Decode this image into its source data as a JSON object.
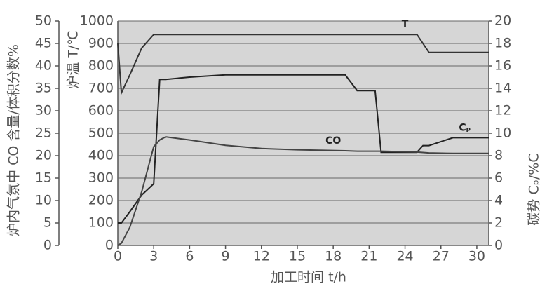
{
  "chart_data": {
    "type": "line",
    "x_label": "加工时间 t/h",
    "y_label": "炉温 T/℃",
    "y2_label": "碳势 Cₚ/%C",
    "y3_label": "炉内气氛中 CO 含量/体积分数%",
    "x": [
      0,
      0.3,
      1,
      2,
      3,
      3.5,
      4,
      6,
      9,
      12,
      15,
      19,
      20,
      21.5,
      22,
      25,
      25.5,
      26,
      28,
      31
    ],
    "series": [
      {
        "name": "T",
        "color": "#333333",
        "values": [
          900,
          680,
          760,
          880,
          940,
          940,
          940,
          940,
          940,
          940,
          940,
          940,
          940,
          940,
          940,
          940,
          900,
          860,
          860,
          860
        ]
      },
      {
        "name": "Cₚ",
        "color": "#222222",
        "axis": "y2",
        "values": [
          2,
          2,
          3,
          4.5,
          5.5,
          14.8,
          14.8,
          15,
          15.2,
          15.2,
          15.2,
          15.2,
          13.8,
          13.8,
          8.3,
          8.3,
          8.9,
          8.9,
          9.6,
          9.6
        ]
      },
      {
        "name": "CO",
        "color": "#444444",
        "axis": "y3",
        "values": [
          0,
          0.5,
          4,
          12,
          22,
          23.5,
          24.2,
          23.5,
          22.3,
          21.6,
          21.3,
          21.1,
          21,
          21,
          21,
          20.8,
          20.7,
          20.6,
          20.5,
          20.5
        ]
      }
    ],
    "xlim": [
      0,
      31
    ],
    "xticks": [
      0,
      3,
      6,
      9,
      12,
      15,
      18,
      21,
      24,
      27,
      30
    ],
    "ylim": [
      0,
      1000
    ],
    "yticks": [
      0,
      100,
      200,
      300,
      400,
      500,
      600,
      700,
      800,
      900,
      1000
    ],
    "y2lim": [
      0,
      20
    ],
    "y2ticks": [
      0,
      2,
      4,
      6,
      8,
      10,
      12,
      14,
      16,
      18,
      20
    ],
    "y3lim": [
      0,
      50
    ],
    "y3ticks": [
      0,
      5,
      10,
      15,
      20,
      25,
      30,
      35,
      40,
      45,
      50
    ],
    "grid": true
  }
}
